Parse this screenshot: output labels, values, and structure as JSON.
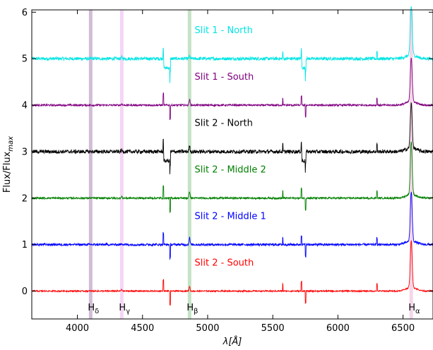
{
  "chart_data": {
    "type": "line",
    "title": "",
    "xlabel": "λ[Å]",
    "ylabel": "Flux/Flux_max",
    "xlim": [
      3650,
      6730
    ],
    "ylim": [
      -0.6,
      6.05
    ],
    "xticks": [
      4000,
      4500,
      5000,
      5500,
      6000,
      6500
    ],
    "yticks": [
      0,
      1,
      2,
      3,
      4,
      5,
      6
    ],
    "grid": false,
    "legend": "none",
    "emission_lines": [
      {
        "name": "H_δ",
        "sub": "δ",
        "wavelength": 4102,
        "color": "#9b6aa6",
        "labeled": true
      },
      {
        "name": "H_γ",
        "sub": "γ",
        "wavelength": 4341,
        "color": "#e9a3e9",
        "labeled": true
      },
      {
        "name": "H_β",
        "sub": "β",
        "wavelength": 4861,
        "color": "#7fbf7f",
        "labeled": true
      },
      {
        "name": "H_α",
        "sub": "α",
        "wavelength": 6563,
        "color": "#e9a3c9",
        "labeled": true
      }
    ],
    "series": [
      {
        "name": "Slit 1 - North",
        "offset": 5,
        "color": "#00e5e5",
        "noise": 0.035,
        "ha": 1.05,
        "hb": 0.05,
        "label_x": 4900,
        "label_y": 5.55,
        "step": true
      },
      {
        "name": "Slit 1 - South",
        "offset": 4,
        "color": "#800080",
        "noise": 0.02,
        "ha": 0.95,
        "hb": 0.12,
        "label_x": 4900,
        "label_y": 4.55,
        "step": false
      },
      {
        "name": "Slit 2 - North",
        "offset": 3,
        "color": "#000000",
        "noise": 0.04,
        "ha": 0.95,
        "hb": 0.12,
        "label_x": 4900,
        "label_y": 3.55,
        "step": true
      },
      {
        "name": "Slit 2 - Middle 2",
        "offset": 2,
        "color": "#008000",
        "noise": 0.02,
        "ha": 1.15,
        "hb": 0.15,
        "label_x": 4900,
        "label_y": 2.55,
        "step": false
      },
      {
        "name": "Slit 2 - Middle 1",
        "offset": 1,
        "color": "#0000ff",
        "noise": 0.025,
        "ha": 1.05,
        "hb": 0.15,
        "label_x": 4900,
        "label_y": 1.55,
        "step": false
      },
      {
        "name": "Slit 2 - South",
        "offset": 0,
        "color": "#ff0000",
        "noise": 0.015,
        "ha": 1.0,
        "hb": 0.1,
        "label_x": 4900,
        "label_y": 0.55,
        "step": false
      }
    ]
  }
}
